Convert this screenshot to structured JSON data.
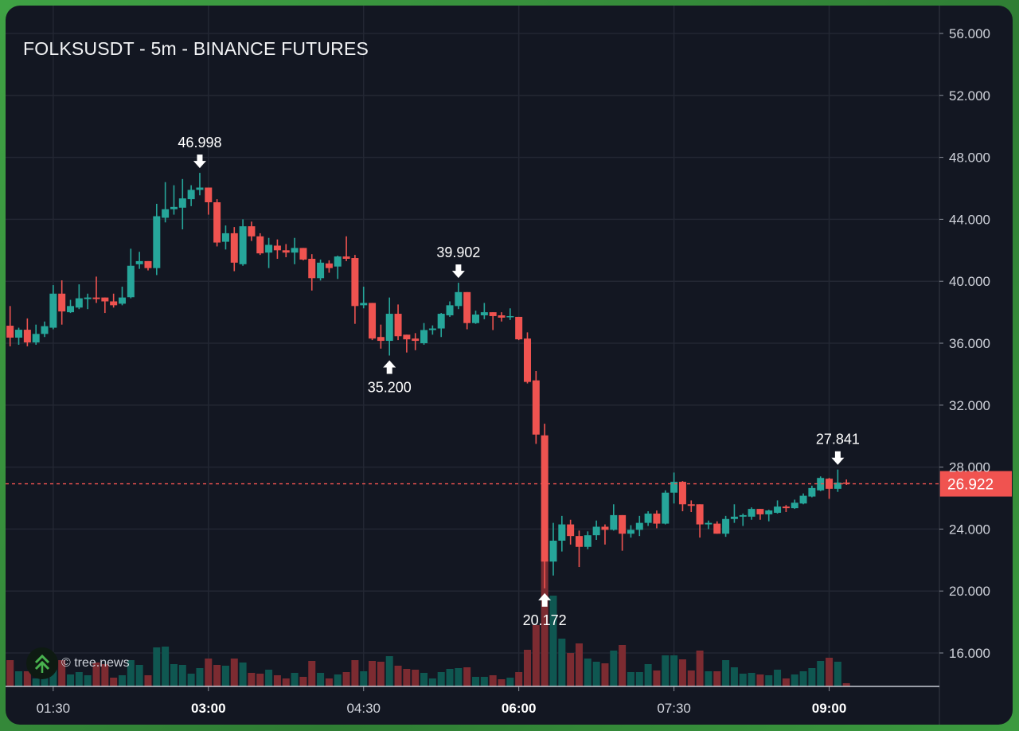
{
  "header": {
    "title": "FOLKSUSDT - 5m - BINANCE FUTURES"
  },
  "watermark": {
    "text": "© tree.news",
    "icon": "tree-news-chevrons-icon"
  },
  "colors": {
    "up": "#26a69a",
    "down": "#ef5350",
    "volume_up": "#0f5751",
    "volume_down": "#7c2b31",
    "background": "#131722",
    "grid": "#232733",
    "last_price": "#f05350",
    "frame": "#3a9a3f"
  },
  "chart_data": {
    "type": "candlestick",
    "title": "FOLKSUSDT - 5m - BINANCE FUTURES",
    "ylim": [
      14.0,
      57.0
    ],
    "y_ticks": [
      "56.000",
      "52.000",
      "48.000",
      "44.000",
      "40.000",
      "36.000",
      "32.000",
      "28.000",
      "24.000",
      "20.000",
      "16.000"
    ],
    "x_ticks": [
      {
        "time": "01:30",
        "label": "01:30",
        "bold": false
      },
      {
        "time": "03:00",
        "label": "03:00",
        "bold": true
      },
      {
        "time": "04:30",
        "label": "04:30",
        "bold": false
      },
      {
        "time": "06:00",
        "label": "06:00",
        "bold": true
      },
      {
        "time": "07:30",
        "label": "07:30",
        "bold": false
      },
      {
        "time": "09:00",
        "label": "09:00",
        "bold": true
      }
    ],
    "grid": true,
    "last_price": {
      "value": 26.922,
      "label": "26.922"
    },
    "annotations": [
      {
        "time": "02:55",
        "price": 46.998,
        "label": "46.998",
        "type": "high"
      },
      {
        "time": "04:45",
        "price": 35.2,
        "label": "35.200",
        "type": "low"
      },
      {
        "time": "05:25",
        "price": 39.902,
        "label": "39.902",
        "type": "high"
      },
      {
        "time": "06:15",
        "price": 20.172,
        "label": "20.172",
        "type": "low"
      },
      {
        "time": "09:05",
        "price": 27.841,
        "label": "27.841",
        "type": "high"
      }
    ],
    "columns": [
      "time",
      "open",
      "high",
      "low",
      "close",
      "volume"
    ],
    "candles": [
      [
        "01:05",
        37.13,
        38.4,
        35.8,
        36.36,
        33
      ],
      [
        "01:10",
        36.36,
        37.0,
        35.9,
        36.87,
        19
      ],
      [
        "01:15",
        36.87,
        37.6,
        35.8,
        36.05,
        19
      ],
      [
        "01:20",
        36.05,
        37.2,
        35.9,
        36.6,
        10
      ],
      [
        "01:25",
        36.6,
        37.4,
        36.4,
        37.1,
        22
      ],
      [
        "01:30",
        37.0,
        39.75,
        36.9,
        39.2,
        27
      ],
      [
        "01:35",
        39.2,
        40.06,
        37.2,
        38.05,
        33
      ],
      [
        "01:40",
        38.0,
        38.8,
        37.95,
        38.4,
        15
      ],
      [
        "01:45",
        38.3,
        39.8,
        38.2,
        38.9,
        18
      ],
      [
        "01:50",
        38.85,
        39.2,
        38.2,
        38.95,
        14
      ],
      [
        "01:55",
        38.95,
        40.3,
        38.6,
        38.85,
        30
      ],
      [
        "02:00",
        38.95,
        38.95,
        37.95,
        38.7,
        28
      ],
      [
        "02:05",
        38.7,
        39.2,
        38.3,
        38.45,
        11
      ],
      [
        "02:10",
        38.55,
        39.65,
        38.45,
        38.95,
        14
      ],
      [
        "02:15",
        38.97,
        42.1,
        38.9,
        41.0,
        33
      ],
      [
        "02:20",
        41.1,
        41.9,
        40.8,
        41.3,
        27
      ],
      [
        "02:25",
        41.3,
        41.3,
        40.7,
        40.85,
        14
      ],
      [
        "02:30",
        40.85,
        45.0,
        40.4,
        44.2,
        49
      ],
      [
        "02:35",
        44.1,
        46.4,
        43.8,
        44.65,
        50
      ],
      [
        "02:40",
        44.65,
        46.2,
        44.3,
        44.8,
        28
      ],
      [
        "02:45",
        44.75,
        46.6,
        43.35,
        45.35,
        27
      ],
      [
        "02:50",
        45.3,
        46.2,
        44.85,
        45.9,
        16
      ],
      [
        "02:55",
        45.9,
        46.998,
        45.55,
        46.05,
        23
      ],
      [
        "03:00",
        46.05,
        46.05,
        44.3,
        45.1,
        35
      ],
      [
        "03:05",
        45.1,
        45.3,
        42.25,
        42.5,
        27
      ],
      [
        "03:10",
        42.55,
        43.6,
        42.05,
        43.1,
        26
      ],
      [
        "03:15",
        43.1,
        43.5,
        40.65,
        41.2,
        35
      ],
      [
        "03:20",
        41.1,
        44.0,
        41.0,
        43.55,
        30
      ],
      [
        "03:25",
        43.55,
        43.85,
        42.6,
        42.9,
        17
      ],
      [
        "03:30",
        42.9,
        43.1,
        41.7,
        41.8,
        16
      ],
      [
        "03:35",
        41.85,
        42.8,
        40.85,
        42.35,
        21
      ],
      [
        "03:40",
        42.3,
        42.7,
        41.45,
        42.0,
        14
      ],
      [
        "03:45",
        42.0,
        42.4,
        41.55,
        41.85,
        10
      ],
      [
        "03:50",
        41.85,
        42.8,
        41.1,
        42.15,
        17
      ],
      [
        "03:55",
        42.15,
        42.15,
        41.35,
        41.4,
        12
      ],
      [
        "04:00",
        41.45,
        41.75,
        39.4,
        40.2,
        32
      ],
      [
        "04:05",
        40.2,
        41.4,
        40.05,
        41.2,
        17
      ],
      [
        "04:10",
        41.15,
        41.35,
        40.55,
        40.85,
        10
      ],
      [
        "04:15",
        40.95,
        41.65,
        40.15,
        41.6,
        15
      ],
      [
        "04:20",
        41.6,
        42.9,
        41.3,
        41.45,
        18
      ],
      [
        "04:25",
        41.5,
        41.7,
        37.25,
        38.4,
        33
      ],
      [
        "04:30",
        38.45,
        39.65,
        38.25,
        38.6,
        19
      ],
      [
        "04:35",
        38.6,
        38.6,
        36.2,
        36.3,
        32
      ],
      [
        "04:40",
        36.4,
        37.2,
        35.65,
        36.15,
        31
      ],
      [
        "04:45",
        36.15,
        38.95,
        35.2,
        37.9,
        38
      ],
      [
        "04:50",
        37.9,
        38.5,
        36.2,
        36.45,
        26
      ],
      [
        "04:55",
        36.55,
        36.55,
        35.4,
        36.25,
        22
      ],
      [
        "05:00",
        36.3,
        36.65,
        35.55,
        36.15,
        21
      ],
      [
        "05:05",
        36.0,
        37.3,
        35.9,
        36.85,
        17
      ],
      [
        "05:10",
        36.85,
        37.15,
        36.55,
        36.95,
        10
      ],
      [
        "05:15",
        36.95,
        37.95,
        36.4,
        37.9,
        18
      ],
      [
        "05:20",
        37.8,
        38.7,
        37.7,
        38.45,
        22
      ],
      [
        "05:25",
        38.4,
        39.902,
        38.2,
        39.3,
        23
      ],
      [
        "05:30",
        39.3,
        39.3,
        36.9,
        37.3,
        24
      ],
      [
        "05:35",
        37.3,
        38.1,
        37.25,
        37.85,
        12
      ],
      [
        "05:40",
        37.8,
        38.6,
        37.55,
        38.0,
        12
      ],
      [
        "05:45",
        38.0,
        38.0,
        36.85,
        37.75,
        14
      ],
      [
        "05:50",
        37.8,
        38.0,
        37.4,
        37.65,
        9
      ],
      [
        "05:55",
        37.7,
        38.25,
        37.5,
        37.75,
        11
      ],
      [
        "06:00",
        37.7,
        37.7,
        36.2,
        36.25,
        18
      ],
      [
        "06:05",
        36.3,
        36.7,
        33.4,
        33.5,
        46
      ],
      [
        "06:10",
        33.6,
        34.2,
        29.5,
        30.1,
        77
      ],
      [
        "06:15",
        30.05,
        30.8,
        20.172,
        21.9,
        160
      ],
      [
        "06:20",
        21.9,
        24.4,
        21.0,
        23.25,
        114
      ],
      [
        "06:25",
        23.25,
        24.85,
        22.55,
        24.3,
        60
      ],
      [
        "06:30",
        24.3,
        24.6,
        23.0,
        23.55,
        42
      ],
      [
        "06:35",
        23.55,
        23.9,
        21.55,
        22.85,
        54
      ],
      [
        "06:40",
        22.85,
        23.85,
        22.7,
        23.6,
        35
      ],
      [
        "06:45",
        23.6,
        24.55,
        23.3,
        24.15,
        31
      ],
      [
        "06:50",
        24.15,
        24.3,
        23.0,
        23.95,
        29
      ],
      [
        "06:55",
        23.95,
        25.6,
        23.9,
        24.9,
        45
      ],
      [
        "07:00",
        24.9,
        24.9,
        22.6,
        23.7,
        52
      ],
      [
        "07:05",
        23.7,
        24.25,
        23.45,
        23.95,
        18
      ],
      [
        "07:10",
        23.95,
        24.85,
        23.55,
        24.4,
        18
      ],
      [
        "07:15",
        24.4,
        25.15,
        24.2,
        25.0,
        28
      ],
      [
        "07:20",
        25.0,
        25.2,
        24.05,
        24.35,
        20
      ],
      [
        "07:25",
        24.35,
        26.5,
        24.3,
        26.35,
        39
      ],
      [
        "07:30",
        26.35,
        27.65,
        25.65,
        27.05,
        39
      ],
      [
        "07:35",
        27.05,
        27.1,
        25.15,
        25.6,
        34
      ],
      [
        "07:40",
        25.6,
        25.85,
        25.1,
        25.5,
        20
      ],
      [
        "07:45",
        25.6,
        25.6,
        23.45,
        24.3,
        45
      ],
      [
        "07:50",
        24.3,
        24.55,
        24.0,
        24.4,
        19
      ],
      [
        "07:55",
        24.35,
        24.5,
        23.7,
        23.7,
        19
      ],
      [
        "08:00",
        23.7,
        24.85,
        23.5,
        24.65,
        33
      ],
      [
        "08:05",
        24.65,
        25.6,
        24.4,
        24.8,
        24
      ],
      [
        "08:10",
        24.8,
        25.0,
        24.2,
        24.9,
        16
      ],
      [
        "08:15",
        24.8,
        25.4,
        24.6,
        25.3,
        17
      ],
      [
        "08:20",
        25.3,
        25.3,
        24.6,
        24.95,
        15
      ],
      [
        "08:25",
        24.95,
        25.25,
        24.5,
        25.2,
        14
      ],
      [
        "08:30",
        25.05,
        25.85,
        25.0,
        25.45,
        21
      ],
      [
        "08:35",
        25.45,
        25.55,
        25.1,
        25.35,
        10
      ],
      [
        "08:40",
        25.35,
        25.9,
        25.3,
        25.7,
        15
      ],
      [
        "08:45",
        25.65,
        26.3,
        25.6,
        26.15,
        19
      ],
      [
        "08:50",
        26.1,
        26.8,
        26.05,
        26.65,
        23
      ],
      [
        "08:55",
        26.5,
        27.4,
        26.45,
        27.3,
        32
      ],
      [
        "09:00",
        27.25,
        27.3,
        25.95,
        26.6,
        36
      ],
      [
        "09:05",
        26.6,
        27.841,
        26.4,
        27.0,
        31
      ],
      [
        "09:10",
        27.0,
        27.2,
        26.85,
        26.922,
        4
      ]
    ]
  }
}
